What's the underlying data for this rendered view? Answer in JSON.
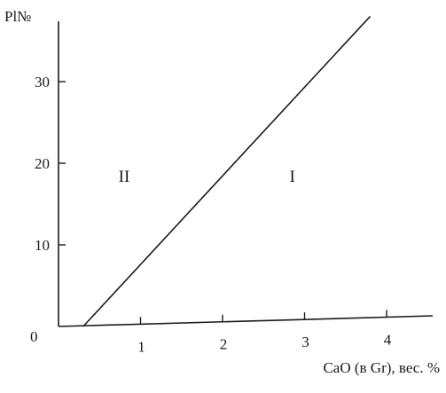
{
  "chart_data": {
    "type": "line",
    "title": "",
    "xlabel": "CaO (в Gr), вес. %",
    "ylabel": "Pl№",
    "origin_label": "0",
    "xlim": [
      0,
      4.5
    ],
    "ylim": [
      0,
      38
    ],
    "x_ticks": [
      1,
      2,
      3,
      4
    ],
    "y_ticks": [
      10,
      20,
      30
    ],
    "grid": false,
    "legend": "none",
    "series": [
      {
        "x": [
          0.3,
          3.8
        ],
        "y": [
          0,
          38
        ]
      }
    ],
    "region_labels": [
      {
        "text": "II",
        "x": 0.8,
        "y": 18.5
      },
      {
        "text": "I",
        "x": 2.85,
        "y": 18.5
      }
    ],
    "colors": {
      "ink": "#1a1a1a",
      "background": "#ffffff"
    }
  }
}
